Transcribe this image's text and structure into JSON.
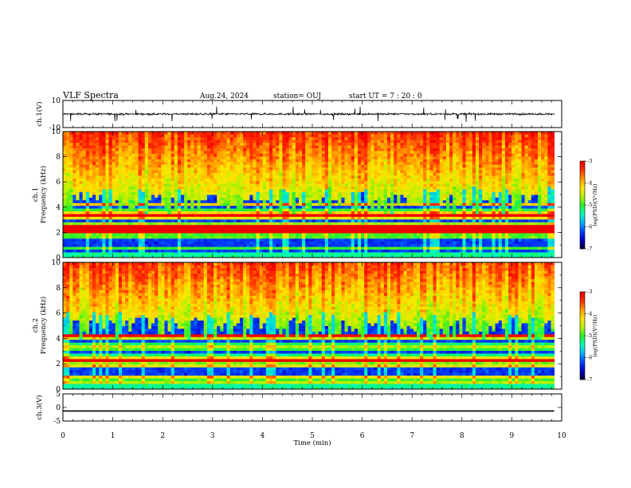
{
  "header": {
    "title": "VLF Spectra",
    "date": "Aug.24, 2024",
    "station": "station= OUJ",
    "start_ut": "start  UT =   7 : 20 : 0"
  },
  "chart_data": [
    {
      "type": "line",
      "panel": "ch1-waveform",
      "ylabel": "ch.1(V)",
      "ylim": [
        -10,
        10
      ],
      "yticks": [
        "10",
        "-10"
      ],
      "xlim": [
        0,
        10
      ],
      "series": [
        {
          "baseline": 0,
          "noise_amplitude": 1.2,
          "spike_amplitude": 6
        }
      ]
    },
    {
      "type": "heatmap",
      "panel": "ch1-spectrogram",
      "ylabel": "ch.1\nFrequency  (kHz)",
      "ylim": [
        0,
        10
      ],
      "yticks": [
        "0",
        "2",
        "4",
        "6",
        "8",
        "10"
      ],
      "xlim": [
        0,
        9.85
      ],
      "colorbar": {
        "range": [
          -7,
          -3
        ],
        "ticks": [
          "-3",
          "-4",
          "-5",
          "-6",
          "-7"
        ],
        "label": "log(PSD)(V²/Hz)"
      },
      "noise_floor_kHz": 4.5
    },
    {
      "type": "heatmap",
      "panel": "ch2-spectrogram",
      "ylabel": "ch.2\nFrequency  (kHz)",
      "ylim": [
        0,
        10
      ],
      "yticks": [
        "0",
        "2",
        "4",
        "6",
        "8",
        "10"
      ],
      "xlim": [
        0,
        9.85
      ],
      "colorbar": {
        "range": [
          -7,
          -3
        ],
        "ticks": [
          "-3",
          "-4",
          "-5",
          "-6",
          "-7"
        ],
        "label": "log(PSD)(V²/Hz)"
      },
      "noise_floor_kHz": 5.0
    },
    {
      "type": "line",
      "panel": "ch3-waveform",
      "ylabel": "ch.3(V)",
      "ylim": [
        -5,
        5
      ],
      "yticks": [
        "5",
        "0",
        "-5"
      ],
      "xlim": [
        0,
        10
      ],
      "series": [
        {
          "baseline": -1.3
        }
      ]
    }
  ],
  "xaxis": {
    "label": "Time  (min)",
    "range": [
      0,
      10
    ],
    "ticks": [
      "0",
      "1",
      "2",
      "3",
      "4",
      "5",
      "6",
      "7",
      "8",
      "9",
      "10"
    ]
  },
  "colors": {
    "frame": "#000000",
    "waveform": "#000000",
    "colormap": [
      "#00003c",
      "#0000c8",
      "#0046ff",
      "#00b4ff",
      "#00ffb4",
      "#28f028",
      "#b4f000",
      "#ffe600",
      "#ffa000",
      "#ff3200",
      "#f00000"
    ]
  }
}
